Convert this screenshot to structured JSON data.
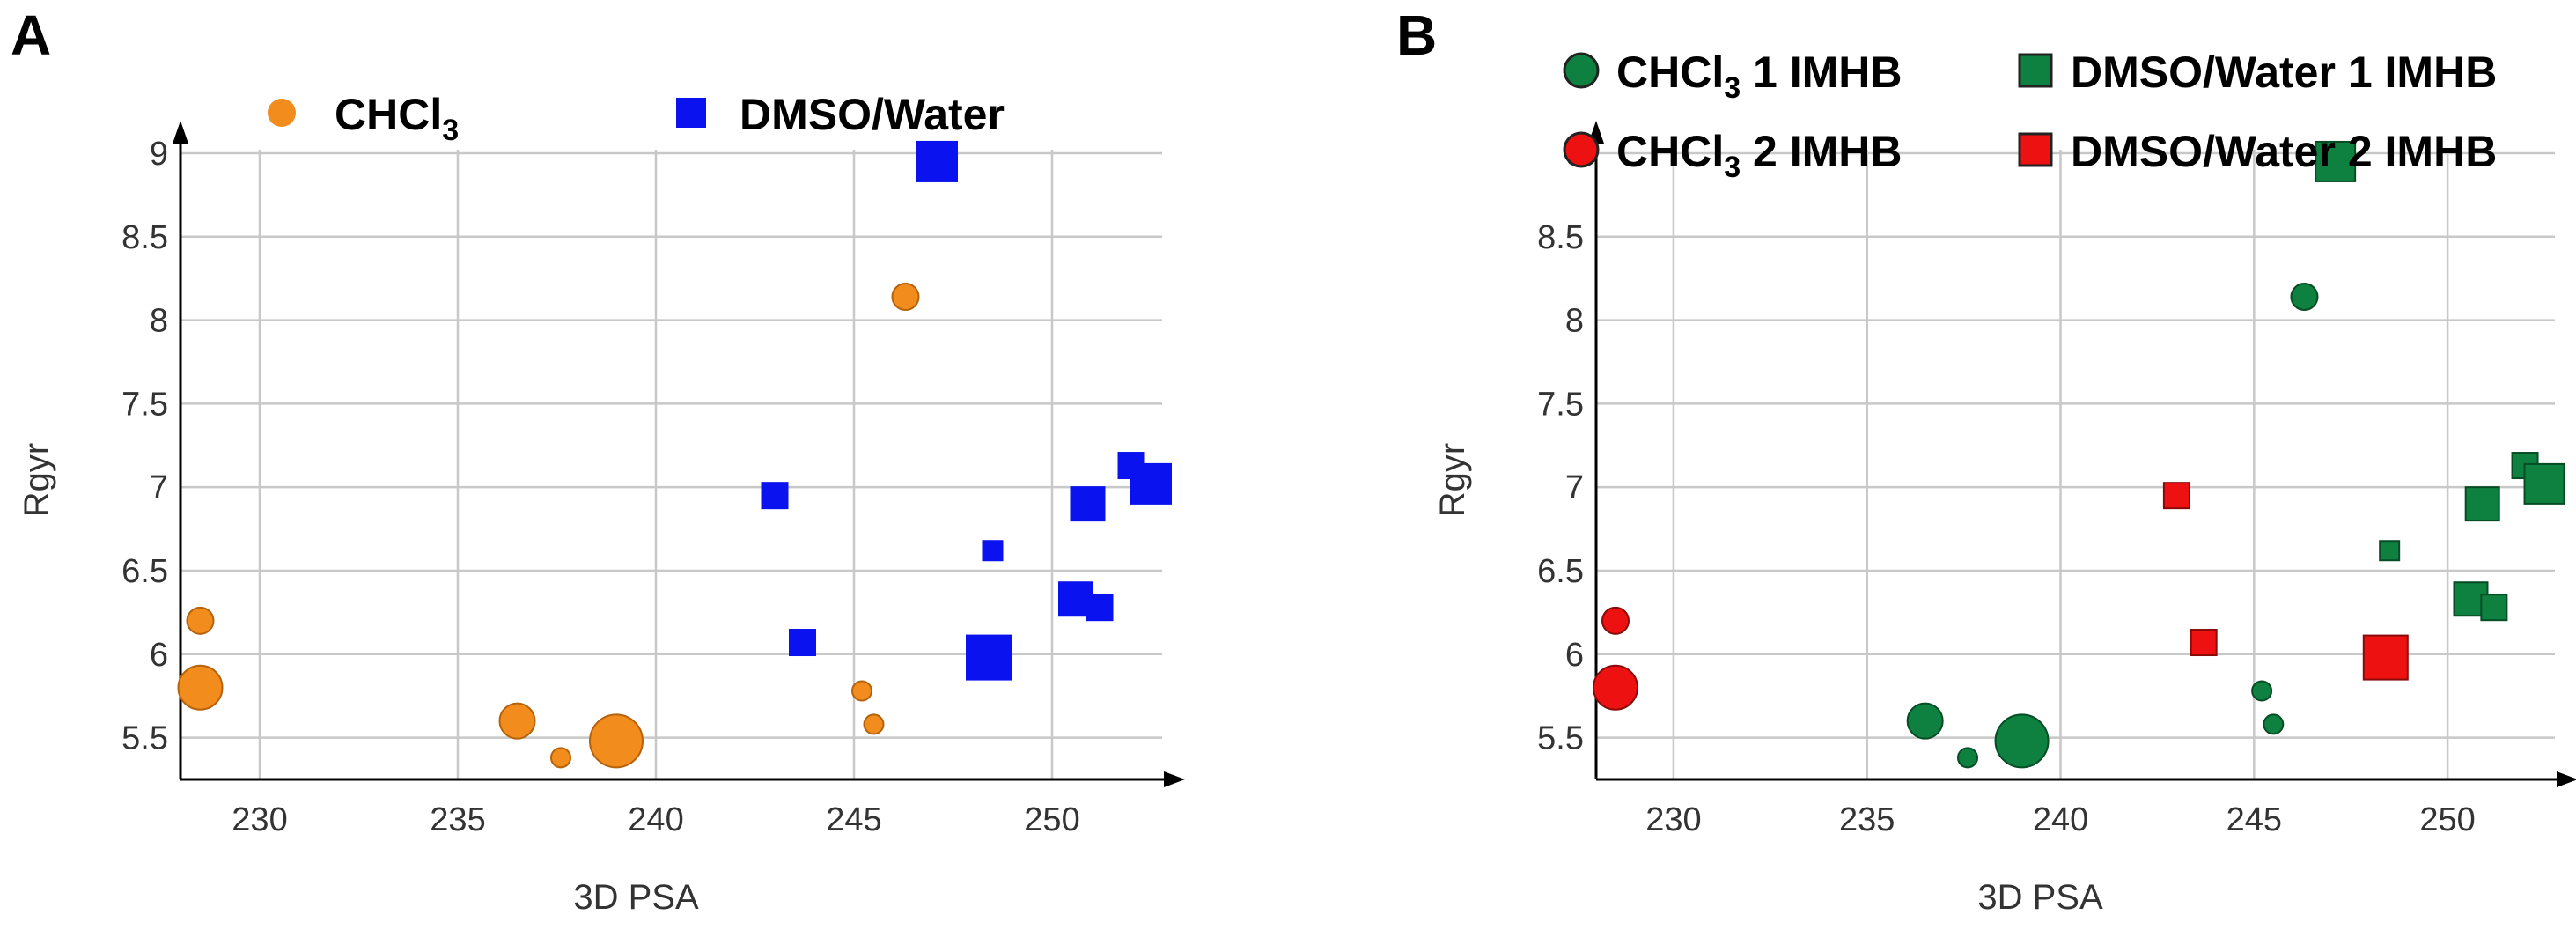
{
  "chart_data": [
    {
      "panel_label": "A",
      "type": "scatter",
      "xlabel": "3D PSA",
      "ylabel": "Rgyr",
      "xlim": [
        228,
        253
      ],
      "ylim": [
        5.25,
        9.1
      ],
      "xticks": [
        "230",
        "235",
        "240",
        "245",
        "250"
      ],
      "yticks": [
        "5.5",
        "6",
        "6.5",
        "7",
        "7.5",
        "8",
        "8.5",
        "9"
      ],
      "legend": [
        {
          "name": "CHCl3",
          "base": "CHCl",
          "sub": "3",
          "marker": "circle",
          "color": "#F28C1C"
        },
        {
          "name": "DMSO/Water",
          "base": "DMSO/Water",
          "sub": "",
          "marker": "square",
          "color": "#0A12F0"
        }
      ],
      "series": [
        {
          "name": "CHCl3",
          "marker": "circle",
          "color": "#F28C1C",
          "stroke": "#b5620a",
          "points": [
            {
              "x": 228.5,
              "y": 6.2,
              "size": 2
            },
            {
              "x": 228.5,
              "y": 5.8,
              "size": 4
            },
            {
              "x": 236.5,
              "y": 5.6,
              "size": 3
            },
            {
              "x": 237.6,
              "y": 5.38,
              "size": 1
            },
            {
              "x": 239.0,
              "y": 5.48,
              "size": 5
            },
            {
              "x": 245.2,
              "y": 5.78,
              "size": 1
            },
            {
              "x": 245.5,
              "y": 5.58,
              "size": 1
            },
            {
              "x": 246.3,
              "y": 8.14,
              "size": 2
            }
          ]
        },
        {
          "name": "DMSO/Water",
          "marker": "square",
          "color": "#0A12F0",
          "stroke": "#0A12F0",
          "points": [
            {
              "x": 247.1,
              "y": 8.95,
              "size": 4
            },
            {
              "x": 243.0,
              "y": 6.95,
              "size": 2
            },
            {
              "x": 243.7,
              "y": 6.07,
              "size": 2
            },
            {
              "x": 248.4,
              "y": 5.98,
              "size": 5
            },
            {
              "x": 248.5,
              "y": 6.62,
              "size": 1
            },
            {
              "x": 250.6,
              "y": 6.33,
              "size": 3
            },
            {
              "x": 251.2,
              "y": 6.28,
              "size": 2
            },
            {
              "x": 250.9,
              "y": 6.9,
              "size": 3
            },
            {
              "x": 252.0,
              "y": 7.13,
              "size": 2
            },
            {
              "x": 252.5,
              "y": 7.02,
              "size": 4
            }
          ]
        }
      ]
    },
    {
      "panel_label": "B",
      "type": "scatter",
      "xlabel": "3D PSA",
      "ylabel": "Rgyr",
      "xlim": [
        228,
        253
      ],
      "ylim": [
        5.25,
        9.1
      ],
      "xticks": [
        "230",
        "235",
        "240",
        "245",
        "250"
      ],
      "yticks": [
        "5.5",
        "6",
        "6.5",
        "7",
        "7.5",
        "8",
        "8.5",
        "9"
      ],
      "legend": [
        {
          "name": "CHCl3 1 IMHB",
          "base": "CHCl",
          "sub": "3",
          "tail": " 1 IMHB",
          "marker": "circle",
          "color": "#0E8040"
        },
        {
          "name": "DMSO/Water 1 IMHB",
          "base": "DMSO/Water 1 IMHB",
          "sub": "",
          "tail": "",
          "marker": "square",
          "color": "#0E8040"
        },
        {
          "name": "CHCl3 2 IMHB",
          "base": "CHCl",
          "sub": "3",
          "tail": " 2 IMHB",
          "marker": "circle",
          "color": "#EE1111"
        },
        {
          "name": "DMSO/Water 2 IMHB",
          "base": "DMSO/Water 2 IMHB",
          "sub": "",
          "tail": "",
          "marker": "square",
          "color": "#EE1111"
        }
      ],
      "series": [
        {
          "name": "CHCl3 1 IMHB",
          "marker": "circle",
          "color": "#0E8040",
          "stroke": "#064d25",
          "points": [
            {
              "x": 236.5,
              "y": 5.6,
              "size": 3
            },
            {
              "x": 237.6,
              "y": 5.38,
              "size": 1
            },
            {
              "x": 239.0,
              "y": 5.48,
              "size": 5
            },
            {
              "x": 245.2,
              "y": 5.78,
              "size": 1
            },
            {
              "x": 245.5,
              "y": 5.58,
              "size": 1
            },
            {
              "x": 246.3,
              "y": 8.14,
              "size": 2
            }
          ]
        },
        {
          "name": "CHCl3 2 IMHB",
          "marker": "circle",
          "color": "#EE1111",
          "stroke": "#8a0a0a",
          "points": [
            {
              "x": 228.5,
              "y": 6.2,
              "size": 2
            },
            {
              "x": 228.5,
              "y": 5.8,
              "size": 4
            }
          ]
        },
        {
          "name": "DMSO/Water 1 IMHB",
          "marker": "square",
          "color": "#0E8040",
          "stroke": "#064d25",
          "points": [
            {
              "x": 247.1,
              "y": 8.95,
              "size": 4
            },
            {
              "x": 248.5,
              "y": 6.62,
              "size": 1
            },
            {
              "x": 250.6,
              "y": 6.33,
              "size": 3
            },
            {
              "x": 251.2,
              "y": 6.28,
              "size": 2
            },
            {
              "x": 250.9,
              "y": 6.9,
              "size": 3
            },
            {
              "x": 252.0,
              "y": 7.13,
              "size": 2
            },
            {
              "x": 252.5,
              "y": 7.02,
              "size": 4
            }
          ]
        },
        {
          "name": "DMSO/Water 2 IMHB",
          "marker": "square",
          "color": "#EE1111",
          "stroke": "#8a0a0a",
          "points": [
            {
              "x": 243.0,
              "y": 6.95,
              "size": 2
            },
            {
              "x": 243.7,
              "y": 6.07,
              "size": 2
            },
            {
              "x": 248.4,
              "y": 5.98,
              "size": 5
            }
          ]
        }
      ]
    }
  ]
}
